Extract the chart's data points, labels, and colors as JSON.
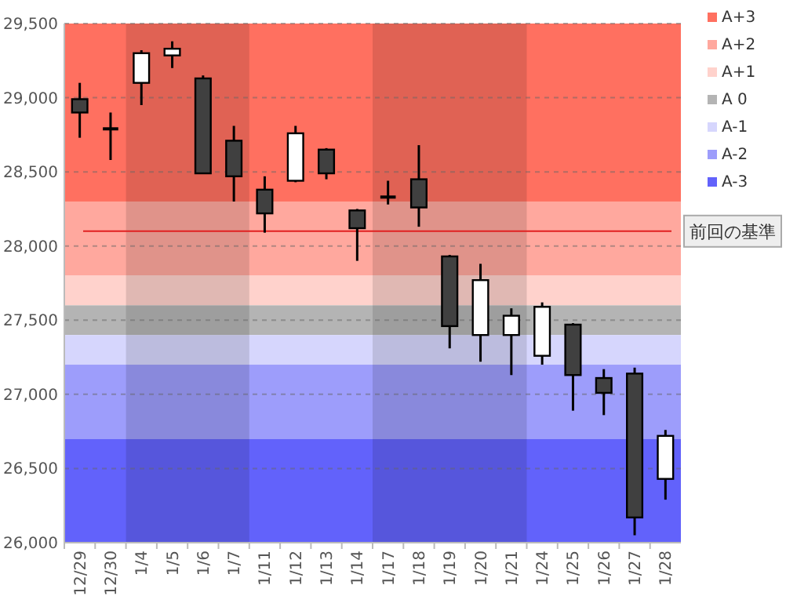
{
  "chart_data": {
    "type": "candlestick",
    "categories": [
      "12/29",
      "12/30",
      "1/4",
      "1/5",
      "1/6",
      "1/7",
      "1/11",
      "1/12",
      "1/13",
      "1/14",
      "1/17",
      "1/18",
      "1/19",
      "1/20",
      "1/21",
      "1/24",
      "1/25",
      "1/26",
      "1/27",
      "1/28"
    ],
    "ohlc": [
      [
        28990,
        29100,
        28730,
        28900
      ],
      [
        28790,
        28900,
        28580,
        28790
      ],
      [
        29100,
        29320,
        28950,
        29300
      ],
      [
        29285,
        29380,
        29200,
        29330
      ],
      [
        29130,
        29150,
        28490,
        28490
      ],
      [
        28710,
        28810,
        28300,
        28470
      ],
      [
        28380,
        28470,
        28090,
        28220
      ],
      [
        28440,
        28810,
        28430,
        28760
      ],
      [
        28650,
        28660,
        28450,
        28490
      ],
      [
        28240,
        28250,
        27900,
        28120
      ],
      [
        28330,
        28440,
        28280,
        28330
      ],
      [
        28450,
        28680,
        28130,
        28260
      ],
      [
        27930,
        27940,
        27310,
        27460
      ],
      [
        27400,
        27880,
        27220,
        27770
      ],
      [
        27400,
        27580,
        27130,
        27530
      ],
      [
        27260,
        27620,
        27200,
        27590
      ],
      [
        27470,
        27480,
        26890,
        27130
      ],
      [
        27110,
        27170,
        26860,
        27010
      ],
      [
        27140,
        27180,
        26050,
        26170
      ],
      [
        26430,
        26760,
        26290,
        26720
      ]
    ],
    "ylim": [
      26000,
      29500
    ],
    "yticks": [
      {
        "value": 26000,
        "label": "26,000"
      },
      {
        "value": 26500,
        "label": "26,500"
      },
      {
        "value": 27000,
        "label": "27,000"
      },
      {
        "value": 27500,
        "label": "27,500"
      },
      {
        "value": 28000,
        "label": "28,000"
      },
      {
        "value": 28500,
        "label": "28,500"
      },
      {
        "value": 29000,
        "label": "29,000"
      },
      {
        "value": 29500,
        "label": "29,500"
      }
    ],
    "grid": "y",
    "legend": "right",
    "bands": [
      {
        "axis": "y",
        "from": 28300,
        "to": 29500,
        "label": "A+3",
        "color": "#ff7060"
      },
      {
        "axis": "y",
        "from": 27800,
        "to": 28300,
        "label": "A+2",
        "color": "#ffa89e"
      },
      {
        "axis": "y",
        "from": 27600,
        "to": 27800,
        "label": "A+1",
        "color": "#ffd2cc"
      },
      {
        "axis": "y",
        "from": 27400,
        "to": 27600,
        "label": "A 0",
        "color": "#b4b4b4"
      },
      {
        "axis": "y",
        "from": 27200,
        "to": 27400,
        "label": "A-1",
        "color": "#d6d6fd"
      },
      {
        "axis": "y",
        "from": 26700,
        "to": 27200,
        "label": "A-2",
        "color": "#9d9dfb"
      },
      {
        "axis": "y",
        "from": 26000,
        "to": 26700,
        "label": "A-3",
        "color": "#6262fb"
      },
      {
        "axis": "x",
        "from": "1/4",
        "to": "1/7",
        "color": "#000000"
      },
      {
        "axis": "x",
        "from": "1/17",
        "to": "1/21",
        "color": "#000000"
      }
    ],
    "ref_lines": [
      {
        "axis": "y",
        "value": 28100,
        "label": "前回の基準",
        "color": "#e02020"
      }
    ]
  }
}
